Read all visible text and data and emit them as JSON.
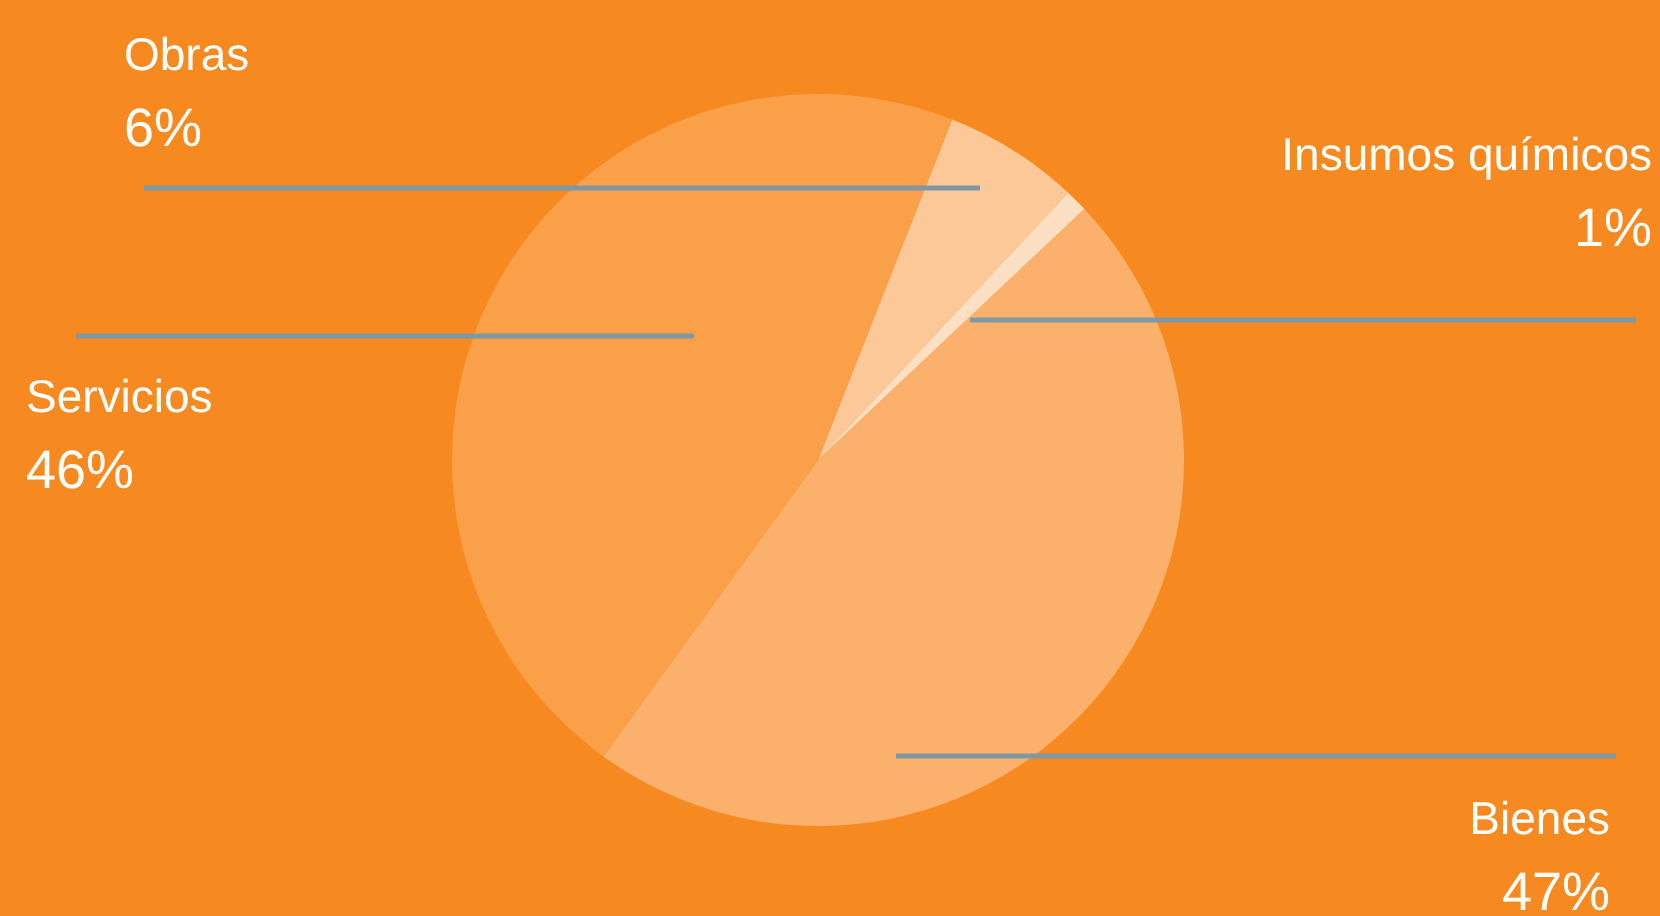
{
  "chart_data": {
    "type": "pie",
    "categories": [
      "Obras",
      "Insumos químicos",
      "Bienes",
      "Servicios"
    ],
    "values": [
      6,
      1,
      47,
      46
    ],
    "colors": [
      "#fdc898",
      "#fde0c4",
      "#fbb06c",
      "#f9a049"
    ],
    "value_labels": [
      "6%",
      "1%",
      "47%",
      "46%"
    ]
  }
}
